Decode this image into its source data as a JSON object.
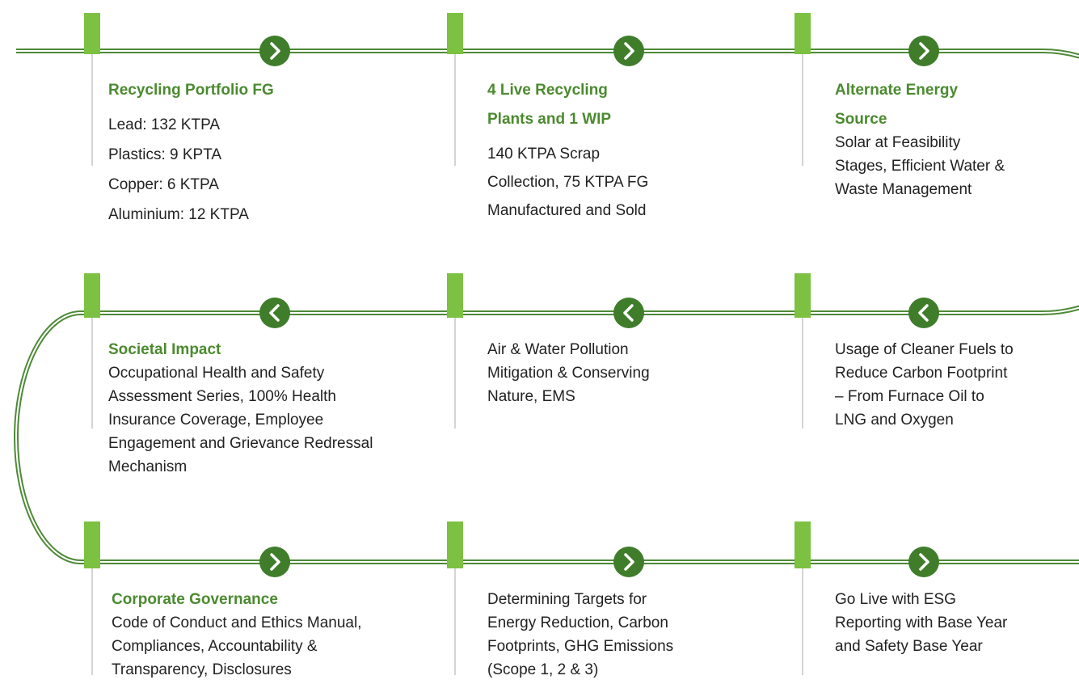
{
  "steps": [
    {
      "title": [
        "Recycling Portfolio FG"
      ],
      "lines": [
        "Lead: 132 KTPA",
        "Plastics: 9 KPTA",
        "Copper: 6 KTPA",
        "Aluminium: 12 KTPA"
      ]
    },
    {
      "title": [
        "4 Live Recycling",
        "Plants and 1 WIP"
      ],
      "lines": [
        "140 KTPA Scrap",
        "Collection, 75 KTPA FG",
        "Manufactured and Sold"
      ]
    },
    {
      "title": [
        "Alternate Energy",
        "Source"
      ],
      "lines": [
        "Solar at Feasibility",
        "Stages, Efficient Water &",
        "Waste Management"
      ]
    },
    {
      "title": [
        "Societal Impact"
      ],
      "lines": [
        "Occupational Health and Safety",
        "Assessment Series, 100% Health",
        "Insurance Coverage, Employee",
        "Engagement and Grievance Redressal",
        "Mechanism"
      ]
    },
    {
      "title": [],
      "lines": [
        "Air & Water Pollution",
        "Mitigation & Conserving",
        "Nature, EMS"
      ]
    },
    {
      "title": [],
      "lines": [
        "Usage of Cleaner Fuels to",
        "Reduce Carbon Footprint",
        "– From Furnace Oil to",
        "LNG and Oxygen"
      ]
    },
    {
      "title": [
        "Corporate Governance"
      ],
      "lines": [
        "Code of Conduct and Ethics Manual,",
        "Compliances, Accountability &",
        "Transparency, Disclosures"
      ]
    },
    {
      "title": [],
      "lines": [
        "Determining Targets for",
        "Energy Reduction, Carbon",
        "Footprints, GHG Emissions",
        "(Scope 1, 2 & 3)"
      ]
    },
    {
      "title": [],
      "lines": [
        "Go Live with ESG",
        "Reporting with Base Year",
        "and Safety Base Year"
      ]
    }
  ]
}
